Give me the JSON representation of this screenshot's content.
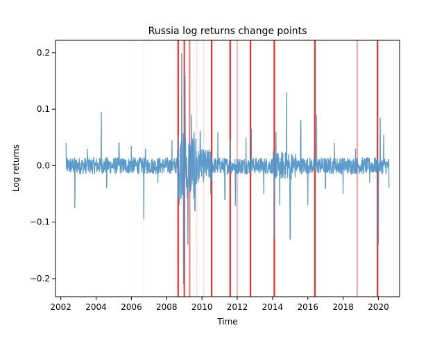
{
  "chart_data": {
    "type": "line",
    "title": "Russia log returns change points",
    "xlabel": "Time",
    "ylabel": "Log returns",
    "xlim": [
      2001.7,
      2021.2
    ],
    "ylim": [
      -0.232,
      0.222
    ],
    "x_ticks": [
      2002,
      2004,
      2006,
      2008,
      2010,
      2012,
      2014,
      2016,
      2018,
      2020
    ],
    "x_tick_labels": [
      "2002",
      "2004",
      "2006",
      "2008",
      "2010",
      "2012",
      "2014",
      "2016",
      "2018",
      "2020"
    ],
    "y_ticks": [
      -0.2,
      -0.1,
      0.0,
      0.1,
      0.2
    ],
    "y_tick_labels": [
      "−0.2",
      "−0.1",
      "0.0",
      "0.1",
      "0.2"
    ],
    "grid": false,
    "series": [
      {
        "color": "#4a90c4",
        "x": [
          2002.3,
          2002.8,
          2003.5,
          2004.3,
          2004.6,
          2005.3,
          2006.0,
          2006.7,
          2006.8,
          2007.5,
          2008.3,
          2008.7,
          2008.85,
          2008.95,
          2009.05,
          2009.2,
          2009.4,
          2009.6,
          2009.9,
          2010.5,
          2010.9,
          2011.3,
          2011.6,
          2011.9,
          2012.5,
          2012.8,
          2013.5,
          2014.1,
          2014.2,
          2014.4,
          2014.8,
          2015.0,
          2015.6,
          2016.0,
          2016.5,
          2017.0,
          2017.5,
          2018.0,
          2018.7,
          2019.5,
          2020.0,
          2020.1,
          2020.3,
          2020.6
        ],
        "y": [
          0.04,
          -0.075,
          0.03,
          0.095,
          -0.04,
          0.04,
          0.035,
          -0.095,
          0.03,
          -0.03,
          0.045,
          -0.07,
          0.2,
          -0.21,
          0.16,
          -0.14,
          0.09,
          -0.08,
          0.06,
          -0.05,
          0.06,
          -0.06,
          0.045,
          -0.07,
          0.05,
          0.065,
          -0.05,
          -0.13,
          0.06,
          -0.07,
          0.13,
          -0.13,
          0.08,
          -0.07,
          0.09,
          -0.04,
          0.04,
          -0.05,
          0.03,
          -0.03,
          -0.14,
          0.085,
          0.055,
          -0.04
        ]
      }
    ],
    "change_points": [
      {
        "x": 2006.7,
        "strength": 0.05
      },
      {
        "x": 2008.65,
        "strength": 0.95
      },
      {
        "x": 2009.0,
        "strength": 0.85
      },
      {
        "x": 2009.3,
        "strength": 0.6
      },
      {
        "x": 2009.7,
        "strength": 0.12
      },
      {
        "x": 2010.1,
        "strength": 0.12
      },
      {
        "x": 2010.55,
        "strength": 0.95
      },
      {
        "x": 2011.6,
        "strength": 0.95
      },
      {
        "x": 2012.0,
        "strength": 0.3
      },
      {
        "x": 2012.75,
        "strength": 0.95
      },
      {
        "x": 2014.1,
        "strength": 0.95
      },
      {
        "x": 2016.4,
        "strength": 0.95
      },
      {
        "x": 2018.8,
        "strength": 0.4
      },
      {
        "x": 2019.95,
        "strength": 0.95
      }
    ]
  }
}
